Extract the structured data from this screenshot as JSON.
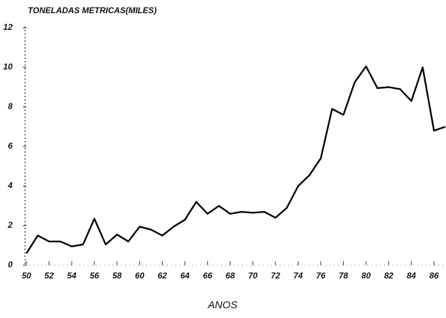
{
  "chart_data": {
    "type": "line",
    "title": "TONELADAS METRICAS(MILES)",
    "x_label": "ANOS",
    "x": [
      50,
      51,
      52,
      53,
      54,
      55,
      56,
      57,
      58,
      59,
      60,
      61,
      62,
      63,
      64,
      65,
      66,
      67,
      68,
      69,
      70,
      71,
      72,
      73,
      74,
      75,
      76,
      77,
      78,
      79,
      80,
      81,
      82,
      83,
      84,
      85,
      86,
      87
    ],
    "series": [
      {
        "name": "TONELADAS METRICAS",
        "color": "#000000",
        "values": [
          0.6,
          1.5,
          1.2,
          1.2,
          0.95,
          1.05,
          2.35,
          1.05,
          1.55,
          1.2,
          1.95,
          1.8,
          1.5,
          1.95,
          2.3,
          3.2,
          2.6,
          3.0,
          2.6,
          2.7,
          2.65,
          2.7,
          2.4,
          2.9,
          4.0,
          4.55,
          5.4,
          7.9,
          7.6,
          9.25,
          10.05,
          8.95,
          9.0,
          8.9,
          8.3,
          10.0,
          6.8,
          7.0
        ]
      }
    ],
    "xlim": [
      50,
      87
    ],
    "xticks": [
      50,
      52,
      54,
      56,
      58,
      60,
      62,
      64,
      66,
      68,
      70,
      72,
      74,
      76,
      78,
      80,
      82,
      84,
      86
    ],
    "ylim": [
      0,
      12
    ],
    "yticks": [
      0,
      2,
      4,
      6,
      8,
      10,
      12
    ],
    "grid": false
  }
}
